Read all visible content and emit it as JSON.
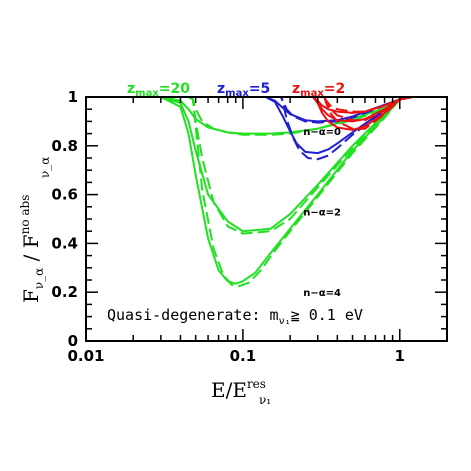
{
  "chart_data": {
    "type": "line",
    "xscale": "log",
    "xlim": [
      0.01,
      2
    ],
    "ylim": [
      0,
      1
    ],
    "xticks": [
      "0.01",
      "0.1",
      "1"
    ],
    "yticks": [
      "0",
      "0.2",
      "0.4",
      "0.6",
      "0.8",
      "1"
    ],
    "xlabel": {
      "main": "E/E",
      "sup": "res",
      "sub": "ν₁"
    },
    "ylabel": {
      "main": "F",
      "sub": "ν_α",
      "mid": " / F",
      "sup": "no abs",
      "sub2": "ν_α"
    },
    "annotation": {
      "text": "Quasi-degenerate: m",
      "sub": "ν₁",
      "rest": "≧ 0.1 eV"
    },
    "curve_labels": [
      {
        "text": "n−α=0",
        "x": 0.32,
        "y": 0.86
      },
      {
        "text": "n−α=2",
        "x": 0.32,
        "y": 0.53
      },
      {
        "text": "n−α=4",
        "x": 0.32,
        "y": 0.2
      }
    ],
    "zmax_labels": [
      {
        "prefix": "z",
        "sub": "max",
        "value": "=20",
        "color": "#22e022"
      },
      {
        "prefix": "z",
        "sub": "max",
        "value": "=5",
        "color": "#2020d0"
      },
      {
        "prefix": "z",
        "sub": "max",
        "value": "=2",
        "color": "#ee1111"
      }
    ],
    "series": [
      {
        "color": "#22e022",
        "style": "solid",
        "x": [
          0.01,
          0.03,
          0.04,
          0.045,
          0.05,
          0.06,
          0.08,
          0.1,
          0.15,
          0.2,
          0.3,
          0.5,
          0.8,
          1.0,
          1.2,
          2.0
        ],
        "y": [
          1,
          1,
          0.985,
          0.95,
          0.91,
          0.875,
          0.855,
          0.85,
          0.85,
          0.855,
          0.87,
          0.91,
          0.955,
          0.99,
          1,
          1
        ]
      },
      {
        "color": "#22e022",
        "style": "dashed",
        "x": [
          0.01,
          0.045,
          0.048,
          0.05,
          0.055,
          0.065,
          0.08,
          0.1,
          0.15,
          0.2,
          0.3,
          0.5,
          0.8,
          1.0,
          1.2,
          2.0
        ],
        "y": [
          1,
          1,
          0.99,
          0.95,
          0.9,
          0.87,
          0.855,
          0.845,
          0.845,
          0.85,
          0.87,
          0.905,
          0.95,
          0.99,
          1,
          1
        ]
      },
      {
        "color": "#22e022",
        "style": "solid",
        "x": [
          0.01,
          0.03,
          0.04,
          0.045,
          0.05,
          0.06,
          0.08,
          0.1,
          0.15,
          0.2,
          0.3,
          0.5,
          0.8,
          1.0,
          1.2,
          2.0
        ],
        "y": [
          1,
          1,
          0.975,
          0.9,
          0.78,
          0.6,
          0.49,
          0.45,
          0.46,
          0.52,
          0.64,
          0.8,
          0.93,
          0.99,
          1,
          1
        ]
      },
      {
        "color": "#22e022",
        "style": "dashed",
        "x": [
          0.01,
          0.045,
          0.048,
          0.05,
          0.055,
          0.065,
          0.08,
          0.1,
          0.15,
          0.2,
          0.3,
          0.5,
          0.8,
          1.0,
          1.2,
          2.0
        ],
        "y": [
          1,
          1,
          0.99,
          0.9,
          0.75,
          0.57,
          0.47,
          0.44,
          0.45,
          0.5,
          0.63,
          0.79,
          0.925,
          0.99,
          1,
          1
        ]
      },
      {
        "color": "#22e022",
        "style": "solid",
        "x": [
          0.01,
          0.03,
          0.04,
          0.045,
          0.05,
          0.06,
          0.07,
          0.08,
          0.09,
          0.1,
          0.12,
          0.15,
          0.2,
          0.3,
          0.5,
          0.8,
          1.0,
          1.2,
          2.0
        ],
        "y": [
          1,
          1,
          0.96,
          0.85,
          0.68,
          0.42,
          0.29,
          0.245,
          0.235,
          0.245,
          0.28,
          0.36,
          0.46,
          0.6,
          0.78,
          0.92,
          0.99,
          1,
          1
        ]
      },
      {
        "color": "#22e022",
        "style": "dashed",
        "x": [
          0.01,
          0.045,
          0.048,
          0.05,
          0.055,
          0.065,
          0.075,
          0.085,
          0.095,
          0.11,
          0.13,
          0.16,
          0.2,
          0.3,
          0.5,
          0.8,
          1.0,
          1.2,
          2.0
        ],
        "y": [
          1,
          1,
          0.99,
          0.88,
          0.62,
          0.38,
          0.27,
          0.23,
          0.225,
          0.24,
          0.29,
          0.37,
          0.45,
          0.59,
          0.77,
          0.915,
          0.99,
          1,
          1
        ]
      },
      {
        "color": "#2020d0",
        "style": "solid",
        "x": [
          0.01,
          0.14,
          0.16,
          0.18,
          0.2,
          0.25,
          0.3,
          0.4,
          0.5,
          0.7,
          1.0,
          1.2,
          2.0
        ],
        "y": [
          1,
          1,
          0.985,
          0.955,
          0.93,
          0.905,
          0.9,
          0.905,
          0.92,
          0.955,
          0.99,
          1,
          1
        ]
      },
      {
        "color": "#2020d0",
        "style": "dashed",
        "x": [
          0.01,
          0.175,
          0.18,
          0.19,
          0.21,
          0.25,
          0.3,
          0.4,
          0.5,
          0.7,
          1.0,
          1.2,
          2.0
        ],
        "y": [
          1,
          1,
          0.985,
          0.95,
          0.92,
          0.9,
          0.895,
          0.9,
          0.915,
          0.95,
          0.99,
          1,
          1
        ]
      },
      {
        "color": "#2020d0",
        "style": "solid",
        "x": [
          0.01,
          0.14,
          0.16,
          0.18,
          0.2,
          0.22,
          0.25,
          0.3,
          0.35,
          0.4,
          0.5,
          0.7,
          1.0,
          1.2,
          2.0
        ],
        "y": [
          1,
          1,
          0.98,
          0.92,
          0.86,
          0.81,
          0.775,
          0.77,
          0.785,
          0.81,
          0.855,
          0.92,
          0.99,
          1,
          1
        ]
      },
      {
        "color": "#2020d0",
        "style": "dashed",
        "x": [
          0.01,
          0.175,
          0.18,
          0.19,
          0.21,
          0.23,
          0.26,
          0.3,
          0.35,
          0.4,
          0.5,
          0.7,
          1.0,
          1.2,
          2.0
        ],
        "y": [
          1,
          1,
          0.98,
          0.91,
          0.83,
          0.78,
          0.75,
          0.745,
          0.76,
          0.79,
          0.845,
          0.915,
          0.99,
          1,
          1
        ]
      },
      {
        "color": "#ee1111",
        "style": "solid",
        "x": [
          0.01,
          0.28,
          0.3,
          0.32,
          0.35,
          0.4,
          0.5,
          0.6,
          0.8,
          1.0,
          1.2,
          2.0
        ],
        "y": [
          1,
          1,
          0.985,
          0.965,
          0.95,
          0.94,
          0.935,
          0.94,
          0.965,
          0.99,
          1,
          1
        ]
      },
      {
        "color": "#ee1111",
        "style": "dashed",
        "x": [
          0.01,
          0.33,
          0.34,
          0.36,
          0.4,
          0.5,
          0.6,
          0.8,
          1.0,
          1.2,
          2.0
        ],
        "y": [
          1,
          1,
          0.985,
          0.965,
          0.95,
          0.94,
          0.94,
          0.965,
          0.99,
          1,
          1
        ]
      },
      {
        "color": "#ee1111",
        "style": "solid",
        "x": [
          0.01,
          0.28,
          0.3,
          0.32,
          0.35,
          0.4,
          0.5,
          0.6,
          0.8,
          1.0,
          1.2,
          2.0
        ],
        "y": [
          1,
          1,
          0.98,
          0.95,
          0.925,
          0.905,
          0.9,
          0.91,
          0.95,
          0.99,
          1,
          1
        ]
      },
      {
        "color": "#ee1111",
        "style": "dashed",
        "x": [
          0.01,
          0.33,
          0.34,
          0.36,
          0.4,
          0.5,
          0.6,
          0.8,
          1.0,
          1.2,
          2.0
        ],
        "y": [
          1,
          1,
          0.98,
          0.95,
          0.925,
          0.905,
          0.905,
          0.945,
          0.99,
          1,
          1
        ]
      },
      {
        "color": "#ee1111",
        "style": "solid",
        "x": [
          0.01,
          0.28,
          0.3,
          0.32,
          0.35,
          0.4,
          0.5,
          0.6,
          0.8,
          1.0,
          1.2,
          2.0
        ],
        "y": [
          1,
          1,
          0.975,
          0.935,
          0.9,
          0.875,
          0.865,
          0.88,
          0.935,
          0.99,
          1,
          1
        ]
      },
      {
        "color": "#ee1111",
        "style": "dashed",
        "x": [
          0.01,
          0.33,
          0.34,
          0.36,
          0.4,
          0.5,
          0.6,
          0.8,
          1.0,
          1.2,
          2.0
        ],
        "y": [
          1,
          1,
          0.975,
          0.935,
          0.9,
          0.87,
          0.87,
          0.93,
          0.99,
          1,
          1
        ]
      }
    ]
  }
}
